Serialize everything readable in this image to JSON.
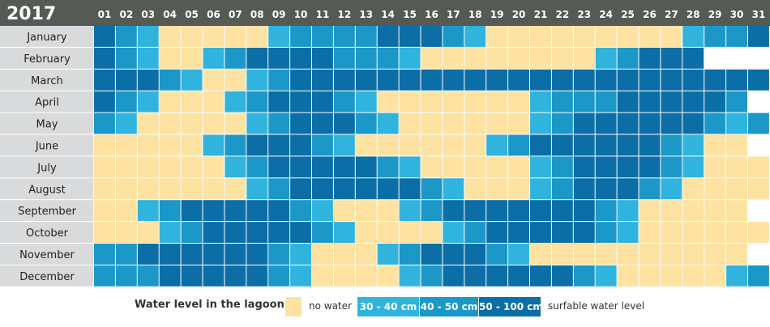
{
  "chart_data": {
    "type": "heatmap",
    "title": "2017",
    "days": [
      "01",
      "02",
      "03",
      "04",
      "05",
      "06",
      "07",
      "08",
      "09",
      "10",
      "11",
      "12",
      "13",
      "14",
      "15",
      "16",
      "17",
      "18",
      "19",
      "20",
      "21",
      "22",
      "23",
      "24",
      "25",
      "26",
      "27",
      "28",
      "29",
      "30",
      "31"
    ],
    "months": [
      "January",
      "February",
      "March",
      "April",
      "May",
      "June",
      "July",
      "August",
      "September",
      "October",
      "November",
      "December"
    ],
    "scale": "0 = no water, 1 = 30 - 40 cm, 2 = 40 - 50 cm, 3 = 50 - 100 cm",
    "values": [
      [
        3,
        2,
        1,
        0,
        0,
        0,
        0,
        0,
        1,
        2,
        2,
        2,
        2,
        3,
        3,
        3,
        2,
        1,
        0,
        0,
        0,
        0,
        0,
        0,
        0,
        0,
        0,
        1,
        2,
        2,
        3
      ],
      [
        3,
        2,
        1,
        0,
        0,
        1,
        2,
        3,
        3,
        3,
        3,
        2,
        2,
        2,
        1,
        0,
        0,
        0,
        0,
        0,
        0,
        0,
        0,
        1,
        2,
        3,
        3,
        3,
        null,
        null,
        null
      ],
      [
        3,
        3,
        3,
        2,
        1,
        0,
        0,
        1,
        2,
        3,
        3,
        3,
        3,
        3,
        3,
        3,
        3,
        3,
        3,
        3,
        3,
        3,
        3,
        3,
        3,
        3,
        3,
        3,
        3,
        3,
        3
      ],
      [
        3,
        2,
        1,
        0,
        0,
        0,
        1,
        2,
        3,
        3,
        3,
        2,
        1,
        0,
        0,
        0,
        0,
        0,
        0,
        0,
        1,
        2,
        2,
        2,
        3,
        3,
        3,
        3,
        3,
        2,
        null
      ],
      [
        2,
        1,
        0,
        0,
        0,
        0,
        0,
        1,
        2,
        3,
        3,
        3,
        2,
        1,
        0,
        0,
        0,
        0,
        0,
        0,
        1,
        2,
        3,
        3,
        3,
        3,
        3,
        3,
        2,
        1,
        2
      ],
      [
        0,
        0,
        0,
        0,
        0,
        1,
        2,
        3,
        3,
        3,
        2,
        1,
        0,
        0,
        0,
        0,
        0,
        0,
        1,
        2,
        3,
        3,
        3,
        3,
        3,
        3,
        2,
        1,
        0,
        0,
        null
      ],
      [
        0,
        0,
        0,
        0,
        0,
        0,
        1,
        2,
        3,
        3,
        3,
        3,
        3,
        2,
        1,
        0,
        0,
        0,
        0,
        0,
        1,
        2,
        3,
        3,
        3,
        3,
        2,
        1,
        0,
        0,
        0
      ],
      [
        0,
        0,
        0,
        0,
        0,
        0,
        0,
        1,
        2,
        3,
        3,
        3,
        3,
        3,
        3,
        2,
        1,
        0,
        0,
        0,
        1,
        2,
        3,
        3,
        3,
        2,
        1,
        0,
        0,
        0,
        0
      ],
      [
        0,
        0,
        1,
        2,
        3,
        3,
        3,
        3,
        3,
        2,
        1,
        0,
        0,
        0,
        1,
        2,
        3,
        3,
        3,
        3,
        3,
        3,
        3,
        2,
        1,
        0,
        0,
        0,
        0,
        0,
        null
      ],
      [
        0,
        0,
        0,
        1,
        2,
        3,
        3,
        3,
        3,
        3,
        2,
        1,
        0,
        0,
        0,
        0,
        1,
        2,
        3,
        3,
        3,
        3,
        3,
        2,
        1,
        0,
        0,
        0,
        0,
        0,
        0
      ],
      [
        2,
        2,
        3,
        3,
        3,
        3,
        3,
        3,
        2,
        1,
        0,
        0,
        0,
        1,
        2,
        3,
        3,
        3,
        2,
        1,
        0,
        0,
        0,
        0,
        0,
        0,
        0,
        0,
        0,
        0,
        null
      ],
      [
        2,
        2,
        2,
        3,
        3,
        3,
        3,
        3,
        2,
        1,
        0,
        0,
        0,
        0,
        1,
        2,
        3,
        3,
        3,
        3,
        3,
        3,
        2,
        1,
        0,
        0,
        0,
        0,
        0,
        1,
        2
      ]
    ],
    "legend": {
      "title": "Water level in the lagoon:",
      "items": [
        {
          "label": "no water",
          "color": "#fde2a2",
          "style": "swatch"
        },
        {
          "label": "30 - 40 cm",
          "color": "#30b3dd",
          "style": "box"
        },
        {
          "label": "40 - 50 cm",
          "color": "#1b98c8",
          "style": "box"
        },
        {
          "label": "50 - 100 cm",
          "color": "#0c6ea6",
          "style": "box"
        }
      ],
      "note": "surfable water level"
    },
    "colors": {
      "level_0": "#fde2a2",
      "level_1": "#30b3dd",
      "level_2": "#1b98c8",
      "level_3": "#0c6ea6",
      "header_bg": "#555a55",
      "header_text": "#ffffff",
      "month_bg": "#d9dadb",
      "month_text": "#222222",
      "grid": "#ffffff"
    }
  }
}
